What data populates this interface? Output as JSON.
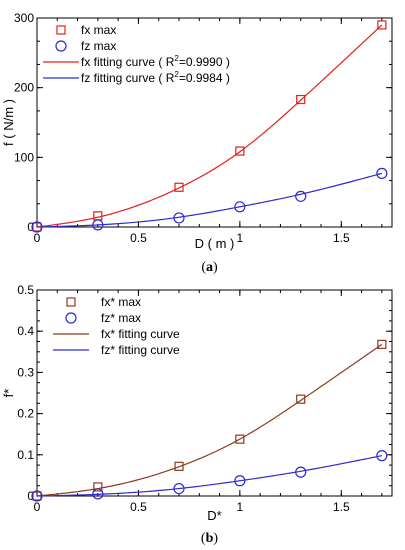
{
  "chart_data": [
    {
      "type": "scatter",
      "panel_label": "(a)",
      "xlabel": "D ( m )",
      "ylabel": "f ( N/m )",
      "xlim": [
        0,
        1.75
      ],
      "ylim": [
        0,
        300
      ],
      "x_ticks": [
        "0",
        "0.5",
        "1",
        "1.5"
      ],
      "y_ticks": [
        "0",
        "100",
        "200",
        "300"
      ],
      "legend_position": "top-left",
      "series": [
        {
          "name": "fx max",
          "marker": "square",
          "color": "#e0211c",
          "x": [
            0,
            0.3,
            0.7,
            1.0,
            1.3,
            1.7
          ],
          "y": [
            0,
            16,
            57,
            109,
            183,
            290
          ]
        },
        {
          "name": "fz max",
          "marker": "circle",
          "color": "#2d2ad2",
          "x": [
            0,
            0.3,
            0.7,
            1.0,
            1.3,
            1.7
          ],
          "y": [
            0,
            3,
            13,
            29,
            44,
            77
          ]
        }
      ],
      "fits": [
        {
          "name_prefix": "fx fitting curve ( R",
          "name_suffix": "=0.9990 )",
          "color": "#e0211c",
          "x": [
            0,
            0.3,
            0.7,
            1.0,
            1.3,
            1.7
          ],
          "y": [
            0,
            14,
            56,
            108,
            182,
            290
          ]
        },
        {
          "name_prefix": "fz fitting curve ( R",
          "name_suffix": "=0.9984 )",
          "color": "#2d2ad2",
          "x": [
            0,
            0.3,
            0.7,
            1.0,
            1.3,
            1.7
          ],
          "y": [
            0,
            3,
            14,
            29,
            47,
            77
          ]
        }
      ]
    },
    {
      "type": "scatter",
      "panel_label": "(b)",
      "xlabel": "D*",
      "ylabel": "f*",
      "xlim": [
        0,
        1.75
      ],
      "ylim": [
        0,
        0.5
      ],
      "x_ticks": [
        "0",
        "0.5",
        "1",
        "1.5"
      ],
      "y_ticks": [
        "0",
        "0.1",
        "0.2",
        "0.3",
        "0.4",
        "0.5"
      ],
      "legend_position": "top-left",
      "series": [
        {
          "name": "fx* max",
          "marker": "square",
          "color": "#8b3a1e",
          "x": [
            0,
            0.3,
            0.7,
            1.0,
            1.3,
            1.7
          ],
          "y": [
            0,
            0.022,
            0.072,
            0.138,
            0.235,
            0.368
          ]
        },
        {
          "name": "fz* max",
          "marker": "circle",
          "color": "#2d2ad2",
          "x": [
            0,
            0.3,
            0.7,
            1.0,
            1.3,
            1.7
          ],
          "y": [
            0,
            0.005,
            0.018,
            0.037,
            0.058,
            0.098
          ]
        }
      ],
      "fits": [
        {
          "name": "fx* fitting curve",
          "color": "#8b3a1e",
          "x": [
            0,
            0.3,
            0.7,
            1.0,
            1.3,
            1.7
          ],
          "y": [
            0,
            0.018,
            0.071,
            0.138,
            0.232,
            0.368
          ]
        },
        {
          "name": "fz* fitting curve",
          "color": "#2d2ad2",
          "x": [
            0,
            0.3,
            0.7,
            1.0,
            1.3,
            1.7
          ],
          "y": [
            0,
            0.004,
            0.018,
            0.037,
            0.06,
            0.098
          ]
        }
      ]
    }
  ]
}
